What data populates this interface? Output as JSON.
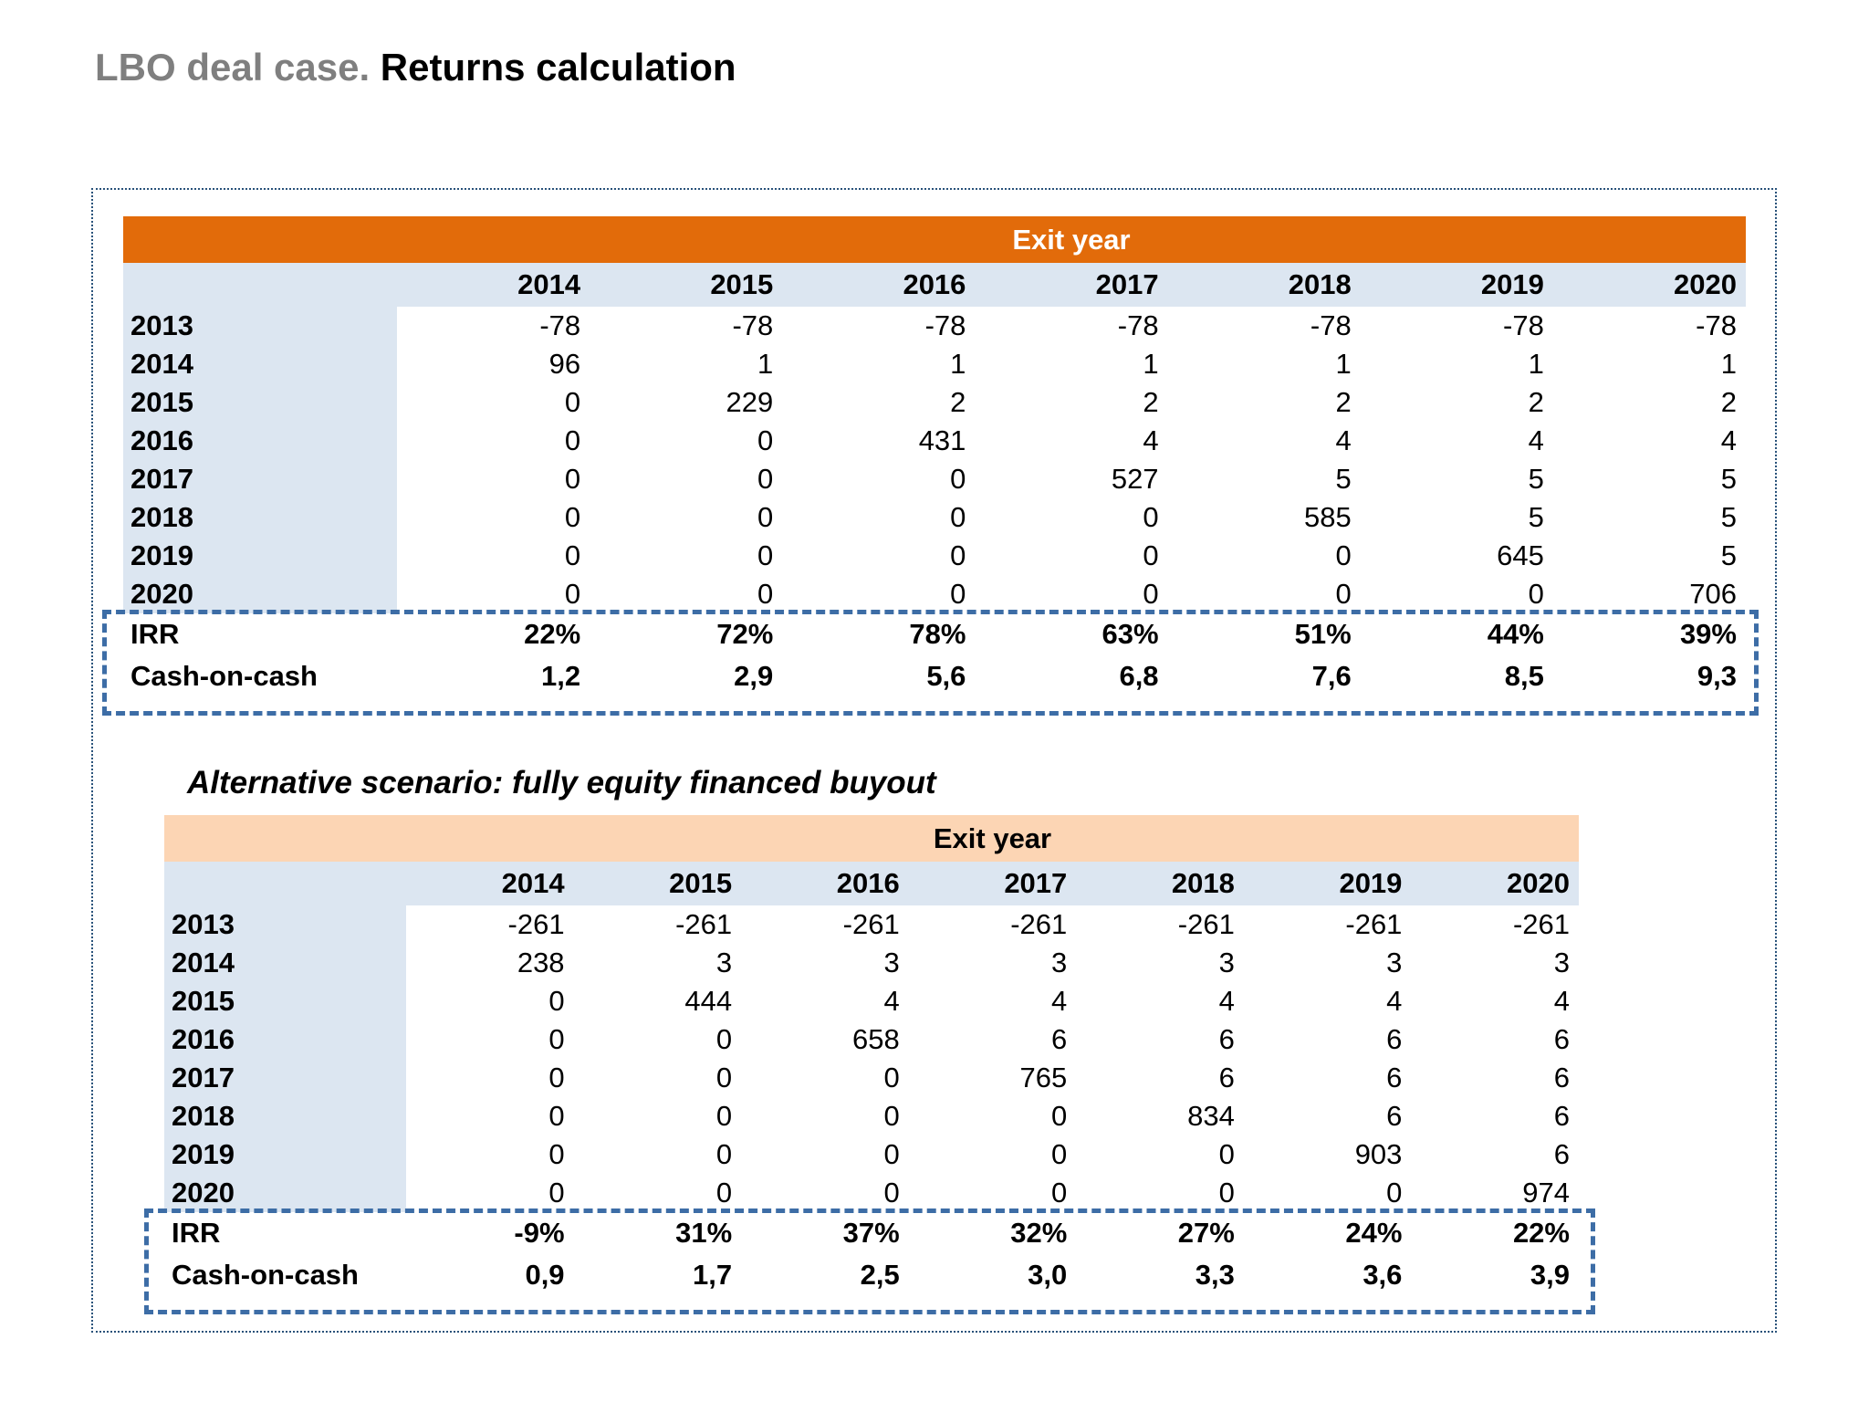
{
  "title": {
    "prefix": "LBO deal case.",
    "main": " Returns calculation"
  },
  "colors": {
    "orange": "#E26B0A",
    "peach": "#FCD5B4",
    "lavender": "#DCE6F1",
    "dash_blue": "#3D6DA6",
    "dot_border": "#29527A",
    "title_gray": "#7F7F7F"
  },
  "tables": [
    {
      "header": "Exit year",
      "columns": [
        "2014",
        "2015",
        "2016",
        "2017",
        "2018",
        "2019",
        "2020"
      ],
      "rows": [
        {
          "label": "2013",
          "values": [
            "-78",
            "-78",
            "-78",
            "-78",
            "-78",
            "-78",
            "-78"
          ]
        },
        {
          "label": "2014",
          "values": [
            "96",
            "1",
            "1",
            "1",
            "1",
            "1",
            "1"
          ]
        },
        {
          "label": "2015",
          "values": [
            "0",
            "229",
            "2",
            "2",
            "2",
            "2",
            "2"
          ]
        },
        {
          "label": "2016",
          "values": [
            "0",
            "0",
            "431",
            "4",
            "4",
            "4",
            "4"
          ]
        },
        {
          "label": "2017",
          "values": [
            "0",
            "0",
            "0",
            "527",
            "5",
            "5",
            "5"
          ]
        },
        {
          "label": "2018",
          "values": [
            "0",
            "0",
            "0",
            "0",
            "585",
            "5",
            "5"
          ]
        },
        {
          "label": "2019",
          "values": [
            "0",
            "0",
            "0",
            "0",
            "0",
            "645",
            "5"
          ]
        },
        {
          "label": "2020",
          "values": [
            "0",
            "0",
            "0",
            "0",
            "0",
            "0",
            "706"
          ]
        }
      ],
      "summary_rows": [
        {
          "label": "IRR",
          "values": [
            "22%",
            "72%",
            "78%",
            "63%",
            "51%",
            "44%",
            "39%"
          ]
        },
        {
          "label": "Cash-on-cash",
          "values": [
            "1,2",
            "2,9",
            "5,6",
            "6,8",
            "7,6",
            "8,5",
            "9,3"
          ]
        }
      ]
    },
    {
      "title": "Alternative scenario: fully equity financed buyout",
      "header": "Exit year",
      "columns": [
        "2014",
        "2015",
        "2016",
        "2017",
        "2018",
        "2019",
        "2020"
      ],
      "rows": [
        {
          "label": "2013",
          "values": [
            "-261",
            "-261",
            "-261",
            "-261",
            "-261",
            "-261",
            "-261"
          ]
        },
        {
          "label": "2014",
          "values": [
            "238",
            "3",
            "3",
            "3",
            "3",
            "3",
            "3"
          ]
        },
        {
          "label": "2015",
          "values": [
            "0",
            "444",
            "4",
            "4",
            "4",
            "4",
            "4"
          ]
        },
        {
          "label": "2016",
          "values": [
            "0",
            "0",
            "658",
            "6",
            "6",
            "6",
            "6"
          ]
        },
        {
          "label": "2017",
          "values": [
            "0",
            "0",
            "0",
            "765",
            "6",
            "6",
            "6"
          ]
        },
        {
          "label": "2018",
          "values": [
            "0",
            "0",
            "0",
            "0",
            "834",
            "6",
            "6"
          ]
        },
        {
          "label": "2019",
          "values": [
            "0",
            "0",
            "0",
            "0",
            "0",
            "903",
            "6"
          ]
        },
        {
          "label": "2020",
          "values": [
            "0",
            "0",
            "0",
            "0",
            "0",
            "0",
            "974"
          ]
        }
      ],
      "summary_rows": [
        {
          "label": "IRR",
          "values": [
            "-9%",
            "31%",
            "37%",
            "32%",
            "27%",
            "24%",
            "22%"
          ]
        },
        {
          "label": "Cash-on-cash",
          "values": [
            "0,9",
            "1,7",
            "2,5",
            "3,0",
            "3,3",
            "3,6",
            "3,9"
          ]
        }
      ]
    }
  ]
}
